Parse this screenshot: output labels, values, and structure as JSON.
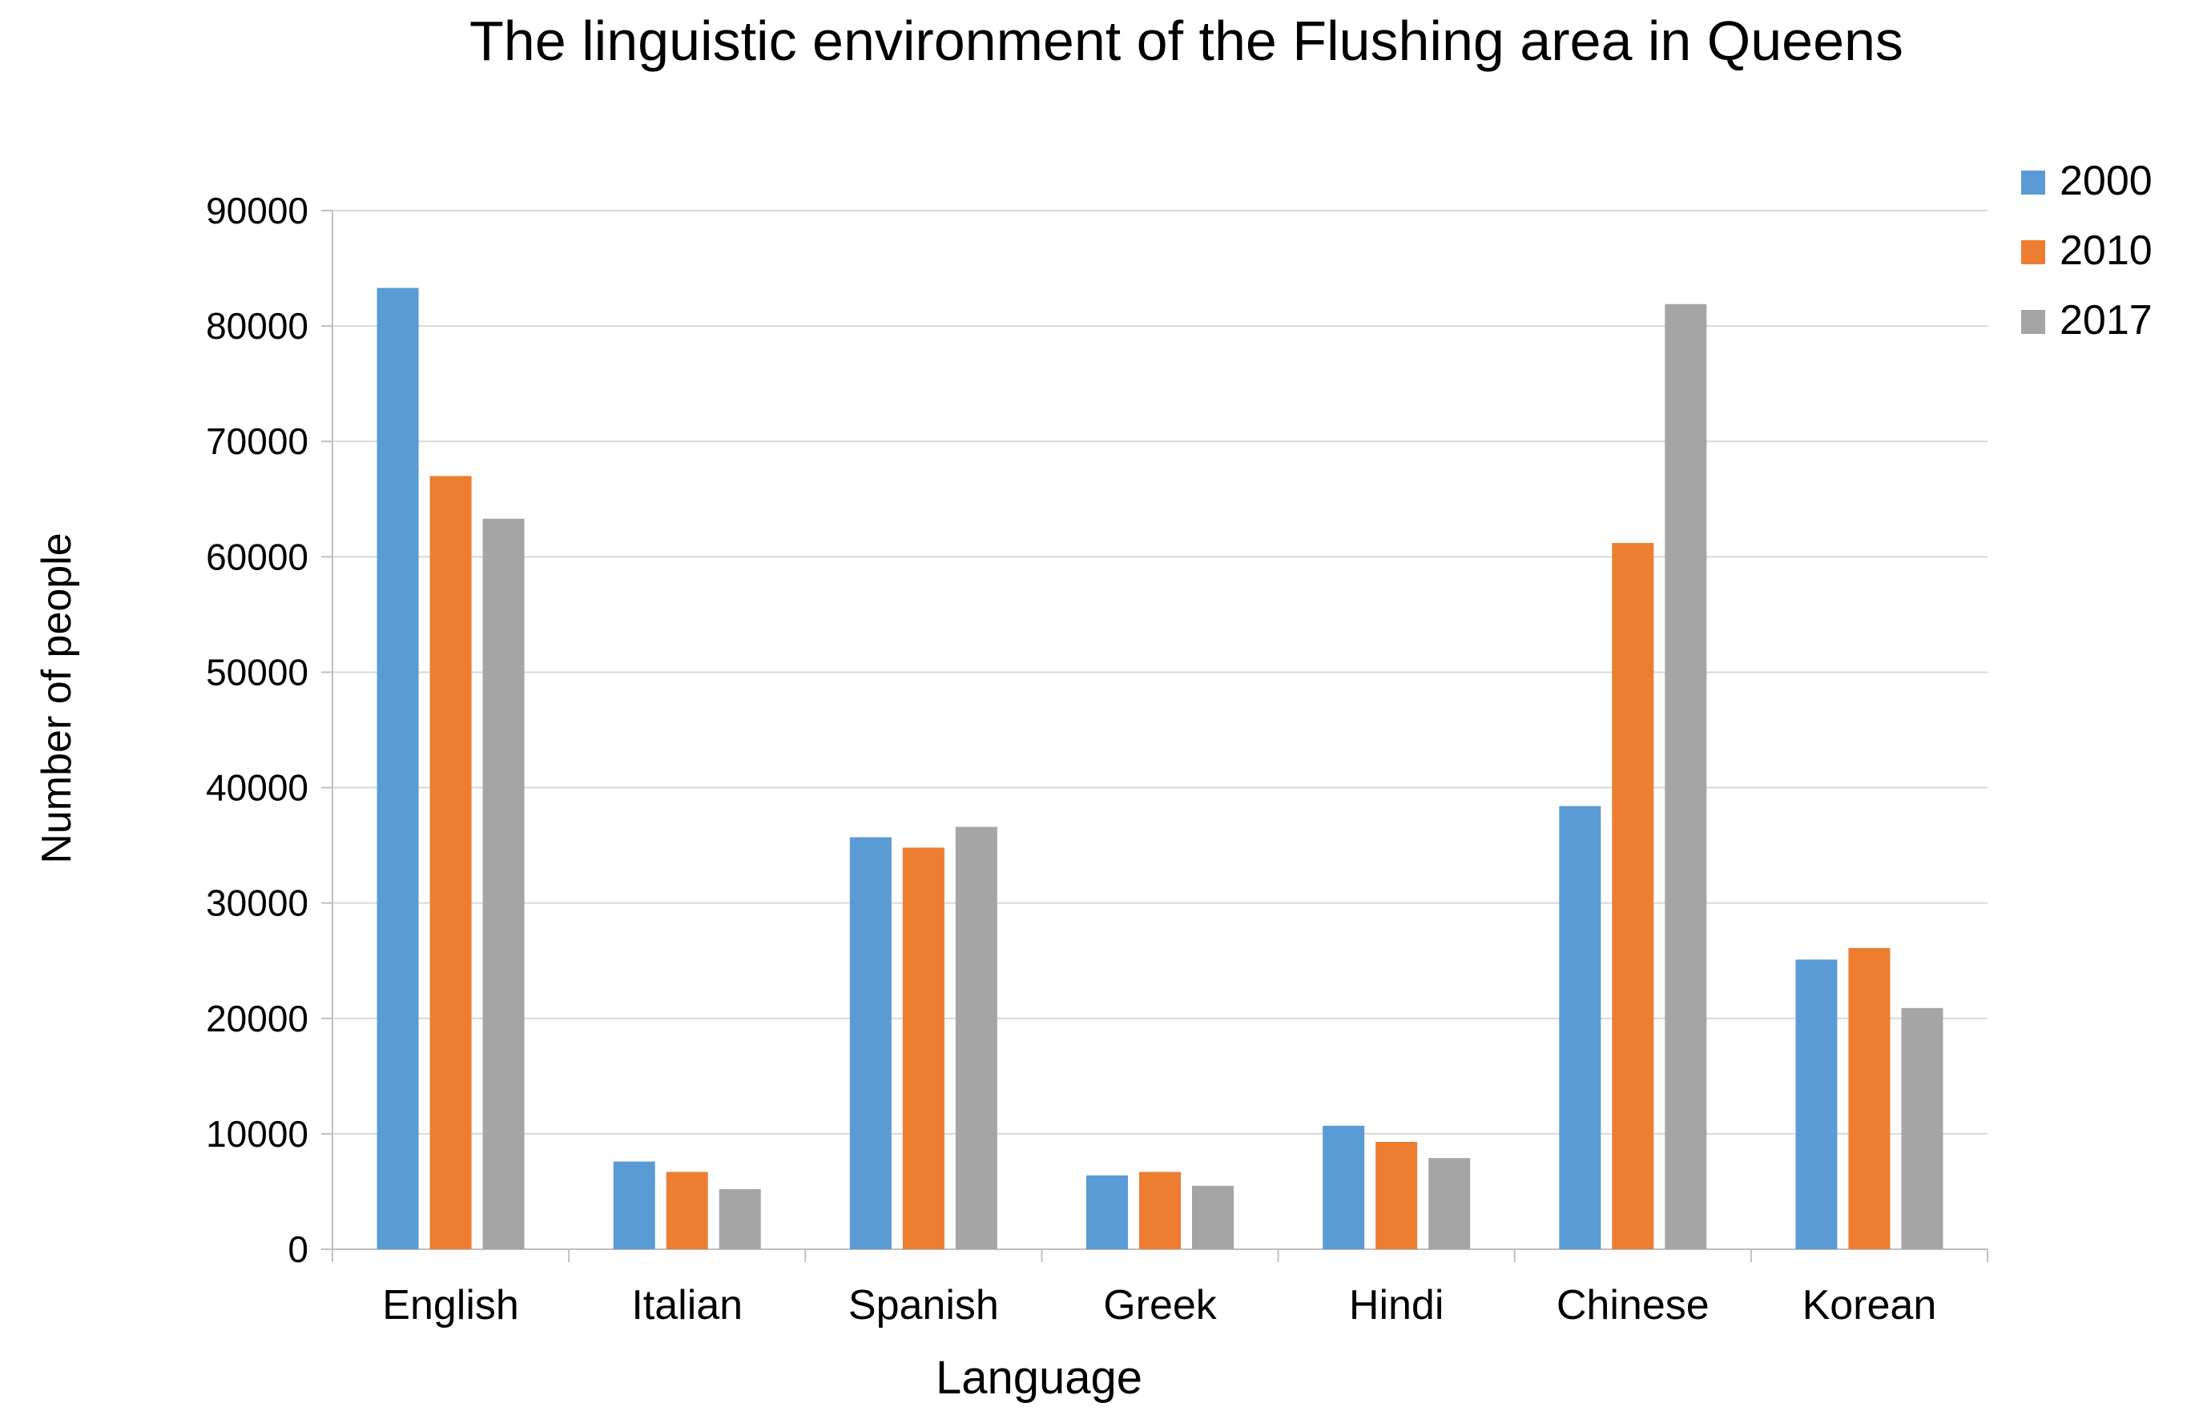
{
  "chart_data": {
    "type": "bar",
    "title": "The linguistic environment of the Flushing area in Queens",
    "xlabel": "Language",
    "ylabel": "Number of people",
    "categories": [
      "English",
      "Italian",
      "Spanish",
      "Greek",
      "Hindi",
      "Chinese",
      "Korean"
    ],
    "series": [
      {
        "name": "2000",
        "color": "#5b9bd5",
        "values": [
          83300,
          7600,
          35700,
          6400,
          10700,
          38400,
          25100
        ]
      },
      {
        "name": "2010",
        "color": "#ed7d31",
        "values": [
          67000,
          6700,
          34800,
          6700,
          9300,
          61200,
          26100
        ]
      },
      {
        "name": "2017",
        "color": "#a5a5a5",
        "values": [
          63300,
          5200,
          36600,
          5500,
          7900,
          81900,
          20900
        ]
      }
    ],
    "ylim": [
      0,
      90000
    ],
    "yticks": [
      "0",
      "10000",
      "20000",
      "30000",
      "40000",
      "50000",
      "60000",
      "70000",
      "80000",
      "90000"
    ],
    "grid": true,
    "legend_position": "top-right"
  }
}
